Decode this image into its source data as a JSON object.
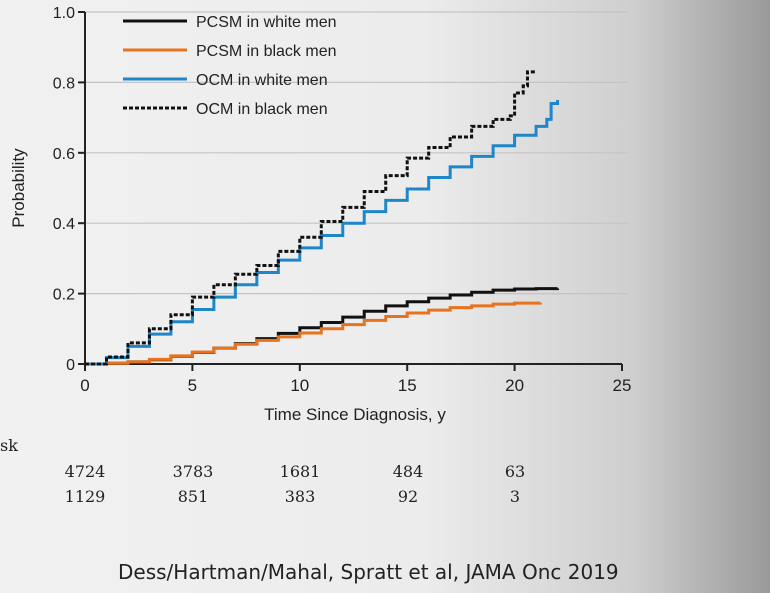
{
  "chart_data": {
    "type": "line",
    "xlabel": "Time Since Diagnosis, y",
    "ylabel": "Probability",
    "xlim": [
      0,
      25
    ],
    "ylim": [
      0,
      1.0
    ],
    "x_ticks": [
      0,
      5,
      10,
      15,
      20,
      25
    ],
    "y_ticks": [
      0,
      0.2,
      0.4,
      0.6,
      0.8,
      1.0
    ],
    "x_tick_labels": [
      "0",
      "5",
      "10",
      "15",
      "20",
      "25"
    ],
    "y_tick_labels": [
      "0",
      "0.2",
      "0.4",
      "0.6",
      "0.8",
      "1.0"
    ],
    "grid": "horizontal",
    "legend_position": "top-left",
    "series": [
      {
        "name": "PCSM in white men",
        "color": "#111111",
        "dash": "solid",
        "x": [
          0,
          1,
          2,
          3,
          4,
          5,
          6,
          7,
          8,
          9,
          10,
          11,
          12,
          13,
          14,
          15,
          16,
          17,
          18,
          19,
          20,
          21,
          22
        ],
        "y": [
          0,
          0.002,
          0.006,
          0.012,
          0.022,
          0.033,
          0.045,
          0.058,
          0.072,
          0.087,
          0.103,
          0.118,
          0.133,
          0.15,
          0.165,
          0.177,
          0.187,
          0.196,
          0.204,
          0.21,
          0.213,
          0.214,
          0.215
        ]
      },
      {
        "name": "PCSM in black men",
        "color": "#e8731f",
        "dash": "solid",
        "x": [
          0,
          1,
          2,
          3,
          4,
          5,
          6,
          7,
          8,
          9,
          10,
          11,
          12,
          13,
          14,
          15,
          16,
          17,
          18,
          19,
          20,
          21.2
        ],
        "y": [
          0,
          0.002,
          0.006,
          0.013,
          0.023,
          0.034,
          0.045,
          0.056,
          0.067,
          0.077,
          0.088,
          0.1,
          0.112,
          0.124,
          0.135,
          0.145,
          0.153,
          0.16,
          0.165,
          0.17,
          0.173,
          0.174
        ]
      },
      {
        "name": "OCM in white men",
        "color": "#1f86c9",
        "dash": "solid",
        "x": [
          0,
          1,
          2,
          3,
          4,
          5,
          6,
          7,
          8,
          9,
          10,
          11,
          12,
          13,
          14,
          15,
          16,
          17,
          18,
          19,
          20,
          21,
          21.5,
          21.7,
          22
        ],
        "y": [
          0,
          0.018,
          0.05,
          0.085,
          0.12,
          0.155,
          0.19,
          0.225,
          0.26,
          0.295,
          0.33,
          0.365,
          0.4,
          0.433,
          0.465,
          0.497,
          0.53,
          0.56,
          0.59,
          0.62,
          0.65,
          0.675,
          0.695,
          0.74,
          0.75
        ]
      },
      {
        "name": "OCM in black men",
        "color": "#111111",
        "dash": "dashed",
        "x": [
          0,
          1,
          2,
          3,
          4,
          5,
          6,
          7,
          8,
          9,
          10,
          11,
          12,
          13,
          14,
          15,
          16,
          17,
          18,
          19,
          19.8,
          20,
          20.4,
          20.6,
          21
        ],
        "y": [
          0,
          0.02,
          0.06,
          0.1,
          0.14,
          0.19,
          0.225,
          0.255,
          0.28,
          0.32,
          0.36,
          0.405,
          0.445,
          0.49,
          0.535,
          0.585,
          0.615,
          0.645,
          0.675,
          0.695,
          0.705,
          0.77,
          0.79,
          0.83,
          0.83
        ]
      }
    ]
  },
  "risk_table": {
    "label": "sk",
    "rows": [
      [
        "4724",
        "3783",
        "1681",
        "484",
        "63"
      ],
      [
        "1129",
        "851",
        "383",
        "92",
        "3"
      ]
    ]
  },
  "citation": "Dess/Hartman/Mahal, Spratt et al, JAMA Onc 2019"
}
